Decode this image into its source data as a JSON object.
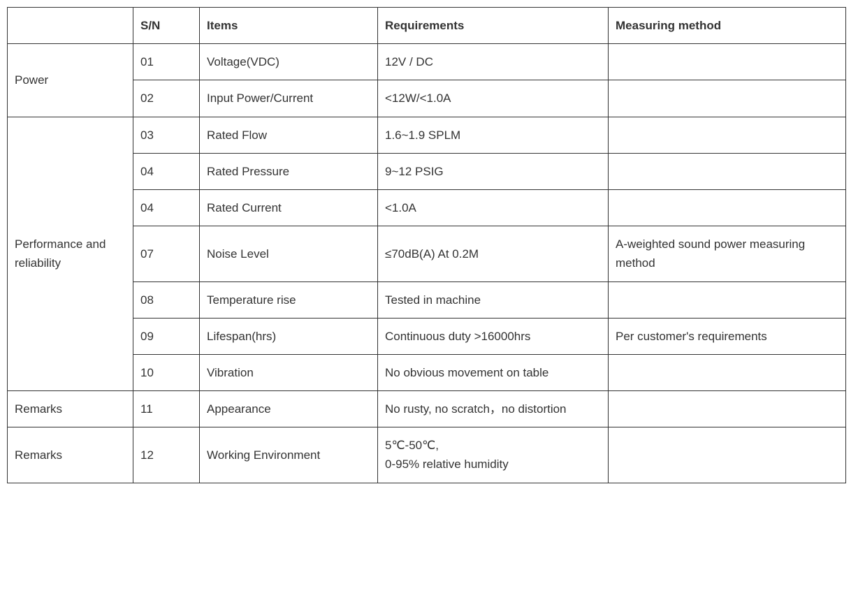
{
  "table": {
    "headers": {
      "category": "",
      "sn": "S/N",
      "items": "Items",
      "requirements": "Requirements",
      "measuring": "Measuring method"
    },
    "groups": [
      {
        "category": "Power",
        "rows": [
          {
            "sn": "01",
            "items": "Voltage(VDC)",
            "requirements": "12V / DC",
            "measuring": ""
          },
          {
            "sn": "02",
            "items": "Input Power/Current",
            "requirements": "<12W/<1.0A",
            "measuring": ""
          }
        ]
      },
      {
        "category": "Performance and reliability",
        "rows": [
          {
            "sn": "03",
            "items": "Rated Flow",
            "requirements": "1.6~1.9 SPLM",
            "measuring": ""
          },
          {
            "sn": "04",
            "items": "Rated Pressure",
            "requirements": "9~12 PSIG",
            "measuring": ""
          },
          {
            "sn": "04",
            "items": "Rated Current",
            "requirements": "<1.0A",
            "measuring": ""
          },
          {
            "sn": "07",
            "items": "Noise Level",
            "requirements": "≤70dB(A) At 0.2M",
            "measuring": "A-weighted sound power measuring method"
          },
          {
            "sn": "08",
            "items": "Temperature rise",
            "requirements": "Tested in machine",
            "measuring": ""
          },
          {
            "sn": "09",
            "items": "Lifespan(hrs)",
            "requirements": "Continuous duty >16000hrs",
            "measuring": "Per customer's requirements"
          },
          {
            "sn": "10",
            "items": "Vibration",
            "requirements": "No obvious movement on table",
            "measuring": ""
          }
        ]
      },
      {
        "category": "Remarks",
        "rows": [
          {
            "sn": "11",
            "items": "Appearance",
            "requirements": "No rusty, no scratch，no distortion",
            "measuring": ""
          }
        ]
      },
      {
        "category": "Remarks",
        "rows": [
          {
            "sn": "12",
            "items": "Working Environment",
            "requirements": "5℃-50℃,\n0-95% relative humidity",
            "measuring": ""
          }
        ]
      }
    ],
    "styling": {
      "border_color": "#333333",
      "text_color": "#333333",
      "background_color": "#ffffff",
      "font_size": 17,
      "header_font_weight": "bold",
      "column_widths": {
        "category": 180,
        "sn": 95,
        "items": 255,
        "requirements": 330,
        "measuring": 340
      }
    }
  }
}
